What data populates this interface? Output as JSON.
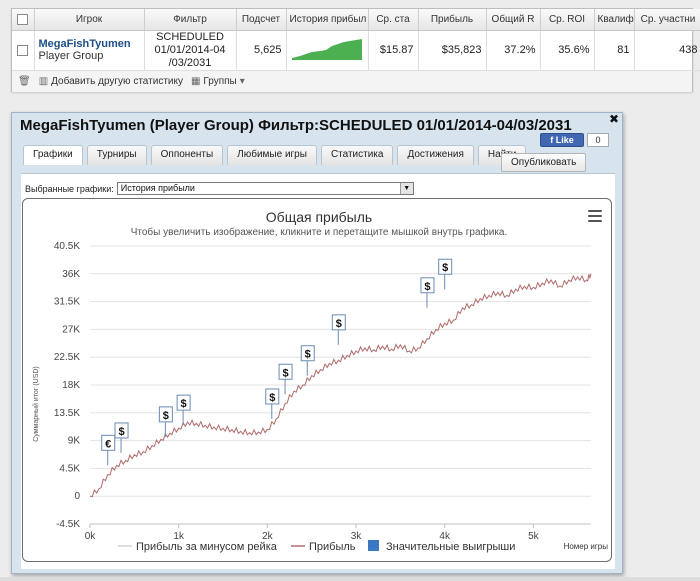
{
  "stats_table": {
    "headers": [
      "Игрок",
      "Фильтр",
      "Подсчет",
      "История прибыл",
      "Ср. ста",
      "Прибыль",
      "Общий R",
      "Ср. ROI",
      "Квалиф",
      "Ср. участни"
    ],
    "row": {
      "player_name": "MegaFishTyumen",
      "player_type": "Player Group",
      "filter": "SCHEDULED 01/01/2014-04 /03/2031",
      "count": "5,625",
      "avg_stake": "$15.87",
      "profit": "$35,823",
      "total_roi": "37.2%",
      "avg_roi": "35.6%",
      "qualified": "81",
      "avg_entrants": "438",
      "remove_label": "x"
    },
    "footer": {
      "add_stat_label": "Добавить другую статистику",
      "groups_label": "Группы"
    }
  },
  "popup": {
    "title": "MegaFishTyumen (Player Group) Фильтр:SCHEDULED 01/01/2014-04/03/2031",
    "like_label": "f Like",
    "like_count": "0",
    "tabs": [
      "Графики",
      "Турниры",
      "Оппоненты",
      "Любимые игры",
      "Статистика",
      "Достижения",
      "Найти"
    ],
    "publish_label": "Опубликовать",
    "graph_select_label": "Выбранные графики:",
    "graph_select_value": "История прибыли"
  },
  "chart_data": {
    "type": "line",
    "title": "Общая прибыль",
    "subtitle": "Чтобы увеличить изображение, кликните и перетащите мышкой внутрь графика.",
    "ylabel": "Суммарный итог (USD)",
    "xlabel": "Номер игры",
    "xlim": [
      0,
      5650
    ],
    "ylim": [
      -4500,
      40500
    ],
    "y_ticks": [
      "-4.5K",
      "0",
      "4.5K",
      "9K",
      "13.5K",
      "18K",
      "22.5K",
      "27K",
      "31.5K",
      "36K",
      "40.5K"
    ],
    "y_tick_values": [
      -4500,
      0,
      4500,
      9000,
      13500,
      18000,
      22500,
      27000,
      31500,
      36000,
      40500
    ],
    "x_ticks": [
      "0k",
      "1k",
      "2k",
      "3k",
      "4k",
      "5k"
    ],
    "x_tick_values": [
      0,
      1000,
      2000,
      3000,
      4000,
      5000
    ],
    "grid": true,
    "legend_placement": "bottom",
    "series": [
      {
        "name": "Прибыль",
        "color": "#b06a6a",
        "x": [
          0,
          100,
          200,
          300,
          400,
          500,
          600,
          700,
          800,
          900,
          1000,
          1100,
          1200,
          1300,
          1400,
          1500,
          1600,
          1700,
          1800,
          1900,
          2000,
          2100,
          2200,
          2300,
          2400,
          2500,
          2600,
          2700,
          2800,
          2900,
          3000,
          3100,
          3200,
          3300,
          3400,
          3500,
          3600,
          3700,
          3800,
          3900,
          4000,
          4100,
          4200,
          4300,
          4400,
          4500,
          4600,
          4700,
          4800,
          4900,
          5000,
          5100,
          5200,
          5300,
          5400,
          5500,
          5600,
          5650
        ],
        "values": [
          0,
          1200,
          3500,
          5000,
          5800,
          6700,
          7200,
          8200,
          9200,
          10200,
          11000,
          12000,
          11800,
          11500,
          11200,
          11000,
          10800,
          10500,
          10300,
          10400,
          10800,
          12500,
          15000,
          17000,
          18000,
          19500,
          20500,
          21500,
          22000,
          22800,
          23500,
          24000,
          23700,
          24300,
          23800,
          24500,
          23500,
          24000,
          25500,
          27000,
          28000,
          28500,
          30500,
          31000,
          32000,
          32500,
          33000,
          32500,
          33500,
          34000,
          33800,
          34500,
          35000,
          34000,
          35000,
          35500,
          35000,
          36000
        ]
      },
      {
        "name": "Прибыль за минусом рейка",
        "color": "#d3d3d3",
        "x": [],
        "values": []
      }
    ],
    "events": {
      "name": "Значительные выигрыши",
      "color": "#3a78c3",
      "points": [
        {
          "x": 200,
          "y": 5000,
          "label": "€"
        },
        {
          "x": 350,
          "y": 7000,
          "label": "$"
        },
        {
          "x": 850,
          "y": 9600,
          "label": "$"
        },
        {
          "x": 1050,
          "y": 11500,
          "label": "$"
        },
        {
          "x": 2050,
          "y": 12500,
          "label": "$"
        },
        {
          "x": 2200,
          "y": 16500,
          "label": "$"
        },
        {
          "x": 2450,
          "y": 19500,
          "label": "$"
        },
        {
          "x": 2800,
          "y": 24500,
          "label": "$"
        },
        {
          "x": 3800,
          "y": 30500,
          "label": "$"
        },
        {
          "x": 4000,
          "y": 33500,
          "label": "$"
        }
      ]
    },
    "legend": [
      "Прибыль за минусом рейка",
      "Прибыль",
      "Значительные выигрыши"
    ]
  }
}
